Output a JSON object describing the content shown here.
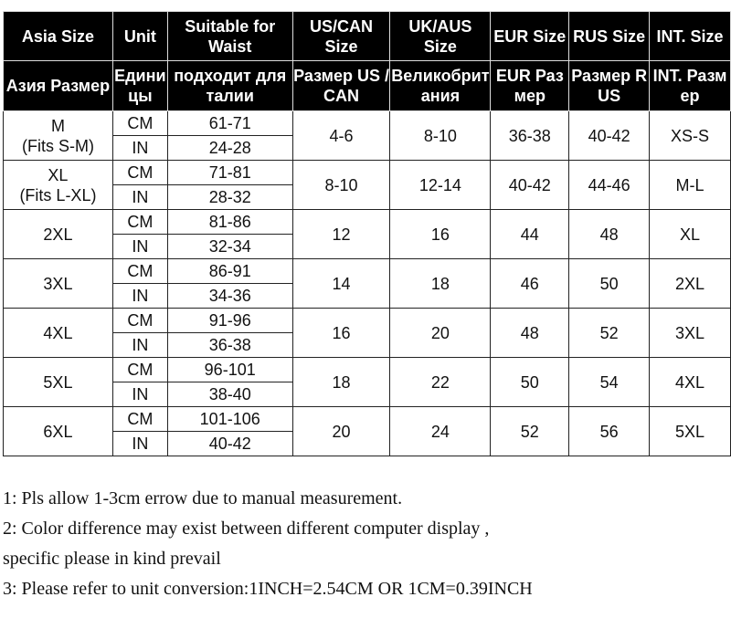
{
  "headers_en": [
    "Asia Size",
    "Unit",
    "Suitable for Waist",
    "US/CAN Size",
    "UK/AUS Size",
    "EUR Size",
    "RUS Size",
    "INT. Size"
  ],
  "headers_ru": [
    "Азия Размер",
    "Единицы",
    "подходит для талии",
    "Размер US / CAN",
    "Великобритания",
    "EUR Размер",
    "Размер RUS",
    "INT. Размер"
  ],
  "rows": [
    {
      "asia": "M",
      "asia_note": "(Fits S-M)",
      "cm": "61-71",
      "in": "24-28",
      "us": "4-6",
      "uk": "8-10",
      "eur": "36-38",
      "rus": "40-42",
      "int": "XS-S"
    },
    {
      "asia": "XL",
      "asia_note": "(Fits L-XL)",
      "cm": "71-81",
      "in": "28-32",
      "us": "8-10",
      "uk": "12-14",
      "eur": "40-42",
      "rus": "44-46",
      "int": "M-L"
    },
    {
      "asia": "2XL",
      "cm": "81-86",
      "in": "32-34",
      "us": "12",
      "uk": "16",
      "eur": "44",
      "rus": "48",
      "int": "XL"
    },
    {
      "asia": "3XL",
      "cm": "86-91",
      "in": "34-36",
      "us": "14",
      "uk": "18",
      "eur": "46",
      "rus": "50",
      "int": "2XL"
    },
    {
      "asia": "4XL",
      "cm": "91-96",
      "in": "36-38",
      "us": "16",
      "uk": "20",
      "eur": "48",
      "rus": "52",
      "int": "3XL"
    },
    {
      "asia": "5XL",
      "cm": "96-101",
      "in": "38-40",
      "us": "18",
      "uk": "22",
      "eur": "50",
      "rus": "54",
      "int": "4XL"
    },
    {
      "asia": "6XL",
      "cm": "101-106",
      "in": "40-42",
      "us": "20",
      "uk": "24",
      "eur": "52",
      "rus": "56",
      "int": "5XL"
    }
  ],
  "units": {
    "cm": "CM",
    "in": "IN"
  },
  "notes": [
    "1:  Pls allow 1-3cm errow due to manual measurement.",
    "2: Color difference may exist between different computer display ,",
    "specific please in kind prevail",
    "3: Please refer to unit conversion:1INCH=2.54CM OR 1CM=0.39INCH"
  ]
}
